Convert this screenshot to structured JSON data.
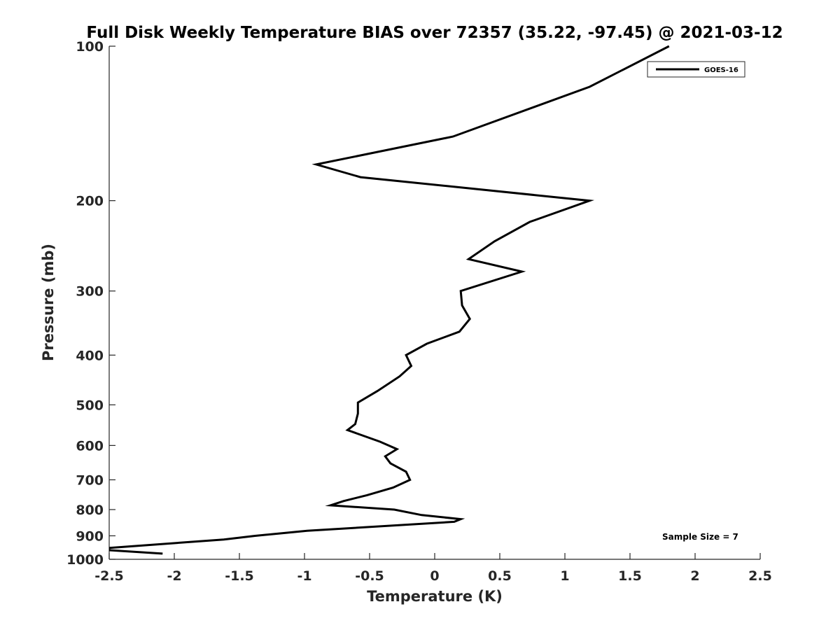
{
  "chart_data": {
    "type": "line",
    "title": "Full Disk Weekly Temperature BIAS over 72357 (35.22, -97.45) @ 2021-03-12",
    "xlabel": "Temperature (K)",
    "ylabel": "Pressure (mb)",
    "xlim": [
      -2.5,
      2.5
    ],
    "ylim": [
      100,
      1000
    ],
    "y_scale": "log",
    "y_reversed": true,
    "grid": false,
    "legend_position": "top-right",
    "x_ticks": [
      "-2.5",
      "-2",
      "-1.5",
      "-1",
      "-0.5",
      "0",
      "0.5",
      "1",
      "1.5",
      "2",
      "2.5"
    ],
    "y_ticks": [
      "100",
      "200",
      "300",
      "400",
      "500",
      "600",
      "700",
      "800",
      "900",
      "1000"
    ],
    "series": [
      {
        "name": "GOES-16",
        "color": "#000000",
        "points": [
          {
            "x": 1.8,
            "p": 100
          },
          {
            "x": 1.19,
            "p": 120
          },
          {
            "x": 0.14,
            "p": 150
          },
          {
            "x": -0.91,
            "p": 170
          },
          {
            "x": -0.57,
            "p": 180
          },
          {
            "x": 1.19,
            "p": 200
          },
          {
            "x": 0.73,
            "p": 220
          },
          {
            "x": 0.46,
            "p": 240
          },
          {
            "x": 0.26,
            "p": 260
          },
          {
            "x": 0.67,
            "p": 275
          },
          {
            "x": 0.2,
            "p": 300
          },
          {
            "x": 0.21,
            "p": 320
          },
          {
            "x": 0.27,
            "p": 340
          },
          {
            "x": 0.19,
            "p": 360
          },
          {
            "x": -0.06,
            "p": 380
          },
          {
            "x": -0.22,
            "p": 400
          },
          {
            "x": -0.18,
            "p": 420
          },
          {
            "x": -0.27,
            "p": 440
          },
          {
            "x": -0.44,
            "p": 470
          },
          {
            "x": -0.59,
            "p": 495
          },
          {
            "x": -0.59,
            "p": 520
          },
          {
            "x": -0.61,
            "p": 545
          },
          {
            "x": -0.67,
            "p": 560
          },
          {
            "x": -0.42,
            "p": 590
          },
          {
            "x": -0.29,
            "p": 610
          },
          {
            "x": -0.38,
            "p": 630
          },
          {
            "x": -0.34,
            "p": 650
          },
          {
            "x": -0.22,
            "p": 675
          },
          {
            "x": -0.19,
            "p": 700
          },
          {
            "x": -0.32,
            "p": 725
          },
          {
            "x": -0.52,
            "p": 750
          },
          {
            "x": -0.7,
            "p": 770
          },
          {
            "x": -0.8,
            "p": 785
          },
          {
            "x": -0.31,
            "p": 800
          },
          {
            "x": -0.1,
            "p": 820
          },
          {
            "x": 0.2,
            "p": 835
          },
          {
            "x": 0.15,
            "p": 845
          },
          {
            "x": -0.98,
            "p": 880
          },
          {
            "x": -1.38,
            "p": 900
          },
          {
            "x": -1.62,
            "p": 915
          },
          {
            "x": -2.5,
            "p": 950
          },
          {
            "x": -2.5,
            "p": 960
          },
          {
            "x": -2.09,
            "p": 975
          }
        ]
      }
    ],
    "annotations": [
      {
        "text": "Sample Size = 7",
        "position": "bottom-right"
      }
    ]
  }
}
